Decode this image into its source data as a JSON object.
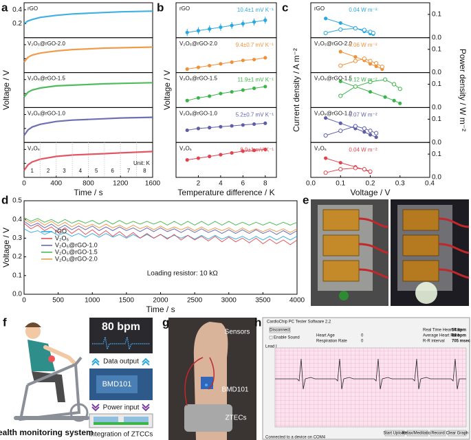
{
  "chart_data": [
    {
      "type": "line",
      "label": "a",
      "subplots": true,
      "xlabel": "Time / s",
      "ylabel": "Voltage / V",
      "x": [
        0,
        50,
        100,
        200,
        400,
        600,
        800,
        1000,
        1200,
        1400,
        1600
      ],
      "xlim": [
        0,
        1600
      ],
      "xticks": [
        0,
        400,
        800,
        1200,
        1600
      ],
      "ylim": [
        0,
        0.5
      ],
      "yticks": [
        0.2,
        0.4
      ],
      "steps": [
        "1",
        "2",
        "3",
        "4",
        "5",
        "6",
        "7",
        "8"
      ],
      "unit": "Unit: K",
      "series": [
        {
          "name": "rGO",
          "color": "#29a8df",
          "values": [
            0.2,
            0.24,
            0.26,
            0.29,
            0.32,
            0.34,
            0.35,
            0.36,
            0.37,
            0.375,
            0.38
          ]
        },
        {
          "name": "V₂O₅@rGO-2.0",
          "color": "#f0913a",
          "values": [
            0.15,
            0.22,
            0.25,
            0.28,
            0.31,
            0.33,
            0.34,
            0.35,
            0.355,
            0.36,
            0.365
          ]
        },
        {
          "name": "V₂O₅@rGO-1.5",
          "color": "#3bb54a",
          "values": [
            0.15,
            0.22,
            0.25,
            0.28,
            0.31,
            0.32,
            0.33,
            0.34,
            0.345,
            0.35,
            0.355
          ]
        },
        {
          "name": "V₂O₅@rGO-1.0",
          "color": "#5c5fa8",
          "values": [
            0.1,
            0.18,
            0.22,
            0.26,
            0.3,
            0.32,
            0.33,
            0.34,
            0.35,
            0.355,
            0.36
          ]
        },
        {
          "name": "V₂O₅",
          "color": "#e0434f",
          "values": [
            0.1,
            0.18,
            0.22,
            0.26,
            0.3,
            0.32,
            0.33,
            0.34,
            0.35,
            0.36,
            0.37
          ]
        }
      ]
    },
    {
      "type": "scatter",
      "label": "b",
      "subplots": true,
      "xlabel": "Temperature difference / K",
      "ylabel": "Voltage / V",
      "x": [
        1,
        2,
        3,
        4,
        5,
        6,
        7,
        8
      ],
      "xlim": [
        0,
        9
      ],
      "xticks": [
        2,
        4,
        6,
        8
      ],
      "ylim": [
        0,
        0.2
      ],
      "series": [
        {
          "name": "rGO",
          "color": "#29a8df",
          "annotation": "10.4±1 mV K⁻¹",
          "values": [
            0.03,
            0.04,
            0.05,
            0.06,
            0.07,
            0.08,
            0.09,
            0.1
          ],
          "errors": [
            0.02,
            0.02,
            0.02,
            0.02,
            0.02,
            0.02,
            0.02,
            0.02
          ]
        },
        {
          "name": "V₂O₅@rGO-2.0",
          "color": "#f0913a",
          "annotation": "9.4±0.7 mV K⁻¹",
          "values": [
            0.02,
            0.03,
            0.04,
            0.05,
            0.06,
            0.07,
            0.075,
            0.085
          ]
        },
        {
          "name": "V₂O₅@rGO-1.5",
          "color": "#3bb54a",
          "annotation": "11.9±1 mV K⁻¹",
          "values": [
            0.04,
            0.055,
            0.065,
            0.08,
            0.09,
            0.1,
            0.11,
            0.12
          ]
        },
        {
          "name": "V₂O₅@rGO-1.0",
          "color": "#5c5fa8",
          "annotation": "5.2±0.7 mV K⁻¹",
          "values": [
            0.07,
            0.08,
            0.085,
            0.09,
            0.095,
            0.1,
            0.105,
            0.11
          ]
        },
        {
          "name": "V₂O₅",
          "color": "#e0434f",
          "annotation": "8.9±1 mV K⁻¹",
          "values": [
            0.1,
            0.11,
            0.12,
            0.13,
            0.14,
            0.15,
            0.155,
            0.16
          ]
        }
      ]
    },
    {
      "type": "scatter",
      "label": "c",
      "subplots": true,
      "xlabel": "Voltage / V",
      "ylabel": "Current density / A m⁻²",
      "y2label": "Power density / W m⁻²",
      "xlim": [
        0,
        0.4
      ],
      "xticks": [
        {
          "value": 0,
          "label": "0.0"
        },
        0.1,
        0.2,
        0.3,
        0.4
      ],
      "ylim": [
        0,
        1
      ],
      "y2lim": [
        0,
        0.15
      ],
      "y2ticks": [
        {
          "value": 0,
          "label": "0.0"
        },
        0.1
      ],
      "series": [
        {
          "name": "rGO",
          "color": "#29a8df",
          "annotation": "0.04 W m⁻²",
          "x": [
            0.05,
            0.1,
            0.15,
            0.18,
            0.2,
            0.21
          ],
          "values": [
            0.55,
            0.42,
            0.28,
            0.18,
            0.12,
            0.1
          ],
          "y2_values": [
            0.02,
            0.035,
            0.04,
            0.033,
            0.025,
            0.02
          ]
        },
        {
          "name": "V₂O₅@rGO-2.0",
          "color": "#f0913a",
          "annotation": "0.06 W m⁻²",
          "x": [
            0.1,
            0.15,
            0.18,
            0.2,
            0.22,
            0.24
          ],
          "values": [
            0.6,
            0.45,
            0.35,
            0.25,
            0.18,
            0.1
          ],
          "y2_values": [
            0.03,
            0.05,
            0.06,
            0.05,
            0.04,
            0.025
          ]
        },
        {
          "name": "V₂O₅@rGO-1.5",
          "color": "#3bb54a",
          "annotation": "0.12 W m⁻²",
          "x": [
            0.1,
            0.15,
            0.2,
            0.25,
            0.28,
            0.3
          ],
          "values": [
            0.75,
            0.6,
            0.45,
            0.3,
            0.2,
            0.12
          ],
          "y2_values": [
            0.05,
            0.09,
            0.11,
            0.12,
            0.1,
            0.08
          ]
        },
        {
          "name": "V₂O₅@rGO-1.0",
          "color": "#5c5fa8",
          "annotation": "0.07 W m⁻²",
          "x": [
            0.05,
            0.1,
            0.15,
            0.18,
            0.2,
            0.22
          ],
          "values": [
            0.7,
            0.55,
            0.4,
            0.3,
            0.22,
            0.15
          ],
          "y2_values": [
            0.03,
            0.05,
            0.07,
            0.06,
            0.05,
            0.04
          ]
        },
        {
          "name": "V₂O₅",
          "color": "#e0434f",
          "annotation": "0.04 W m⁻²",
          "x": [
            0.05,
            0.1,
            0.15,
            0.18,
            0.2
          ],
          "values": [
            0.55,
            0.42,
            0.3,
            0.22,
            0.15
          ],
          "y2_values": [
            0.02,
            0.035,
            0.04,
            0.035,
            0.025
          ]
        }
      ]
    },
    {
      "type": "line",
      "label": "d",
      "subplots": false,
      "xlabel": "Time / s",
      "ylabel": "Voltage / V",
      "legend": "center left",
      "annotation": "Loading resistor: 10 kΩ",
      "xlim": [
        0,
        4000
      ],
      "xticks": [
        0,
        500,
        1000,
        1500,
        2000,
        2500,
        3000,
        3500,
        4000
      ],
      "ylim": [
        0,
        0.5
      ],
      "yticks": [
        {
          "value": 0,
          "label": "0.0"
        },
        0.1,
        0.2,
        0.3,
        0.4,
        0.5
      ],
      "x": [
        0,
        100,
        200,
        300,
        400,
        500,
        600,
        700,
        800,
        900,
        1000,
        1100,
        1200,
        1300,
        1400,
        1500,
        1600,
        1700,
        1800,
        1900,
        2000,
        2100,
        2200,
        2300,
        2400,
        2500,
        2600,
        2700,
        2800,
        2900,
        3000,
        3100,
        3200,
        3300,
        3400,
        3500,
        3600,
        3700,
        3800,
        3900,
        4000
      ],
      "series": [
        {
          "name": "rGO",
          "color": "#29a8df",
          "values": [
            0.35,
            0.33,
            0.34,
            0.32,
            0.335,
            0.315,
            0.33,
            0.31,
            0.325,
            0.305,
            0.325,
            0.305,
            0.325,
            0.305,
            0.32,
            0.3,
            0.32,
            0.3,
            0.32,
            0.3,
            0.32,
            0.3,
            0.315,
            0.3,
            0.315,
            0.295,
            0.315,
            0.295,
            0.315,
            0.295,
            0.31,
            0.295,
            0.31,
            0.29,
            0.31,
            0.29,
            0.31,
            0.29,
            0.31,
            0.29,
            0.31
          ]
        },
        {
          "name": "V₂O₅",
          "color": "#e0434f",
          "values": [
            0.38,
            0.35,
            0.37,
            0.34,
            0.36,
            0.33,
            0.355,
            0.325,
            0.35,
            0.32,
            0.345,
            0.315,
            0.34,
            0.31,
            0.335,
            0.305,
            0.33,
            0.3,
            0.325,
            0.3,
            0.32,
            0.295,
            0.32,
            0.29,
            0.315,
            0.29,
            0.31,
            0.285,
            0.31,
            0.28,
            0.305,
            0.28,
            0.3,
            0.275,
            0.3,
            0.27,
            0.295,
            0.27,
            0.29,
            0.265,
            0.29
          ]
        },
        {
          "name": "V₂O₅@rGO-1.0",
          "color": "#5c5fa8",
          "values": [
            0.39,
            0.365,
            0.38,
            0.355,
            0.375,
            0.35,
            0.37,
            0.345,
            0.365,
            0.345,
            0.365,
            0.34,
            0.36,
            0.34,
            0.36,
            0.34,
            0.355,
            0.335,
            0.355,
            0.335,
            0.355,
            0.335,
            0.35,
            0.33,
            0.35,
            0.33,
            0.35,
            0.33,
            0.345,
            0.325,
            0.345,
            0.325,
            0.345,
            0.325,
            0.345,
            0.325,
            0.34,
            0.32,
            0.34,
            0.32,
            0.34
          ]
        },
        {
          "name": "V₂O₅@rGO-1.5",
          "color": "#3bb54a",
          "values": [
            0.41,
            0.39,
            0.405,
            0.385,
            0.4,
            0.38,
            0.4,
            0.38,
            0.395,
            0.38,
            0.395,
            0.375,
            0.395,
            0.375,
            0.395,
            0.375,
            0.39,
            0.375,
            0.39,
            0.375,
            0.39,
            0.37,
            0.39,
            0.37,
            0.39,
            0.37,
            0.39,
            0.37,
            0.39,
            0.37,
            0.39,
            0.37,
            0.385,
            0.37,
            0.385,
            0.37,
            0.385,
            0.37,
            0.385,
            0.37,
            0.385
          ]
        },
        {
          "name": "V₂O₅@rGO-2.0",
          "color": "#f0913a",
          "values": [
            0.4,
            0.38,
            0.395,
            0.37,
            0.39,
            0.365,
            0.385,
            0.36,
            0.38,
            0.36,
            0.375,
            0.355,
            0.375,
            0.355,
            0.37,
            0.35,
            0.37,
            0.35,
            0.365,
            0.345,
            0.365,
            0.345,
            0.36,
            0.345,
            0.36,
            0.34,
            0.36,
            0.34,
            0.355,
            0.34,
            0.355,
            0.335,
            0.355,
            0.335,
            0.35,
            0.335,
            0.35,
            0.335,
            0.35,
            0.33,
            0.35
          ]
        }
      ]
    }
  ],
  "panel_e": {
    "label": "e"
  },
  "panel_f": {
    "label": "f",
    "heart_rate": "80 bpm",
    "data_output": "Data output",
    "chip": "BMD101",
    "power_input": "Power input",
    "caption": "Health monitoring system",
    "integration": "Integration of ZTCCs"
  },
  "panel_g": {
    "label": "g",
    "sensors": "Sensors",
    "chip": "BMD101",
    "ztecs": "ZTECs"
  },
  "panel_h": {
    "label": "h",
    "window_title": "CardioChip PC Tester Software 2.2",
    "disconnect": "Disconnect",
    "enable_sound": "Enable Sound",
    "fields": [
      {
        "label": "Heart Age",
        "value": "0"
      },
      {
        "label": "Respiration Rate",
        "value": "0"
      }
    ],
    "readouts": [
      {
        "label": "Real Time Heart Rate",
        "value": "54 bpm"
      },
      {
        "label": "Average Heart Rate",
        "value": "80 bpm"
      },
      {
        "label": "R-R interval",
        "value": "705 msec"
      }
    ],
    "buttons": [
      "Start Upload",
      "Relax/Meditation",
      "Record",
      "Clear Graph"
    ],
    "status": "Connected to a device on COM4",
    "channel": "Lead I"
  }
}
